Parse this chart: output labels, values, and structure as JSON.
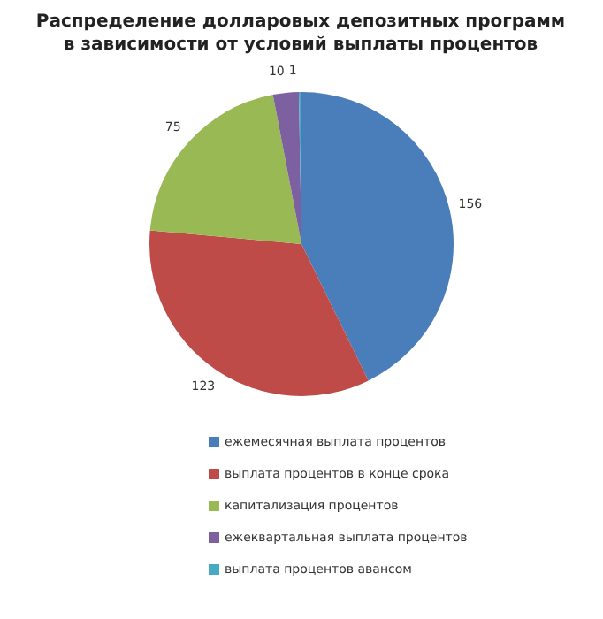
{
  "chart_data": {
    "type": "pie",
    "title": "Распределение долларовых депозитных программ в зависимости от условий выплаты процентов",
    "categories": [
      "ежемесячная выплата процентов",
      "выплата процентов в конце срока",
      "капитализация процентов",
      "ежеквартальная выплата процентов",
      "выплата процентов авансом"
    ],
    "values": [
      156,
      123,
      75,
      10,
      1
    ],
    "colors": [
      "#4a7ebb",
      "#be4b48",
      "#98b954",
      "#7d60a0",
      "#46aac5"
    ],
    "data_labels": true,
    "legend": "bottom"
  }
}
